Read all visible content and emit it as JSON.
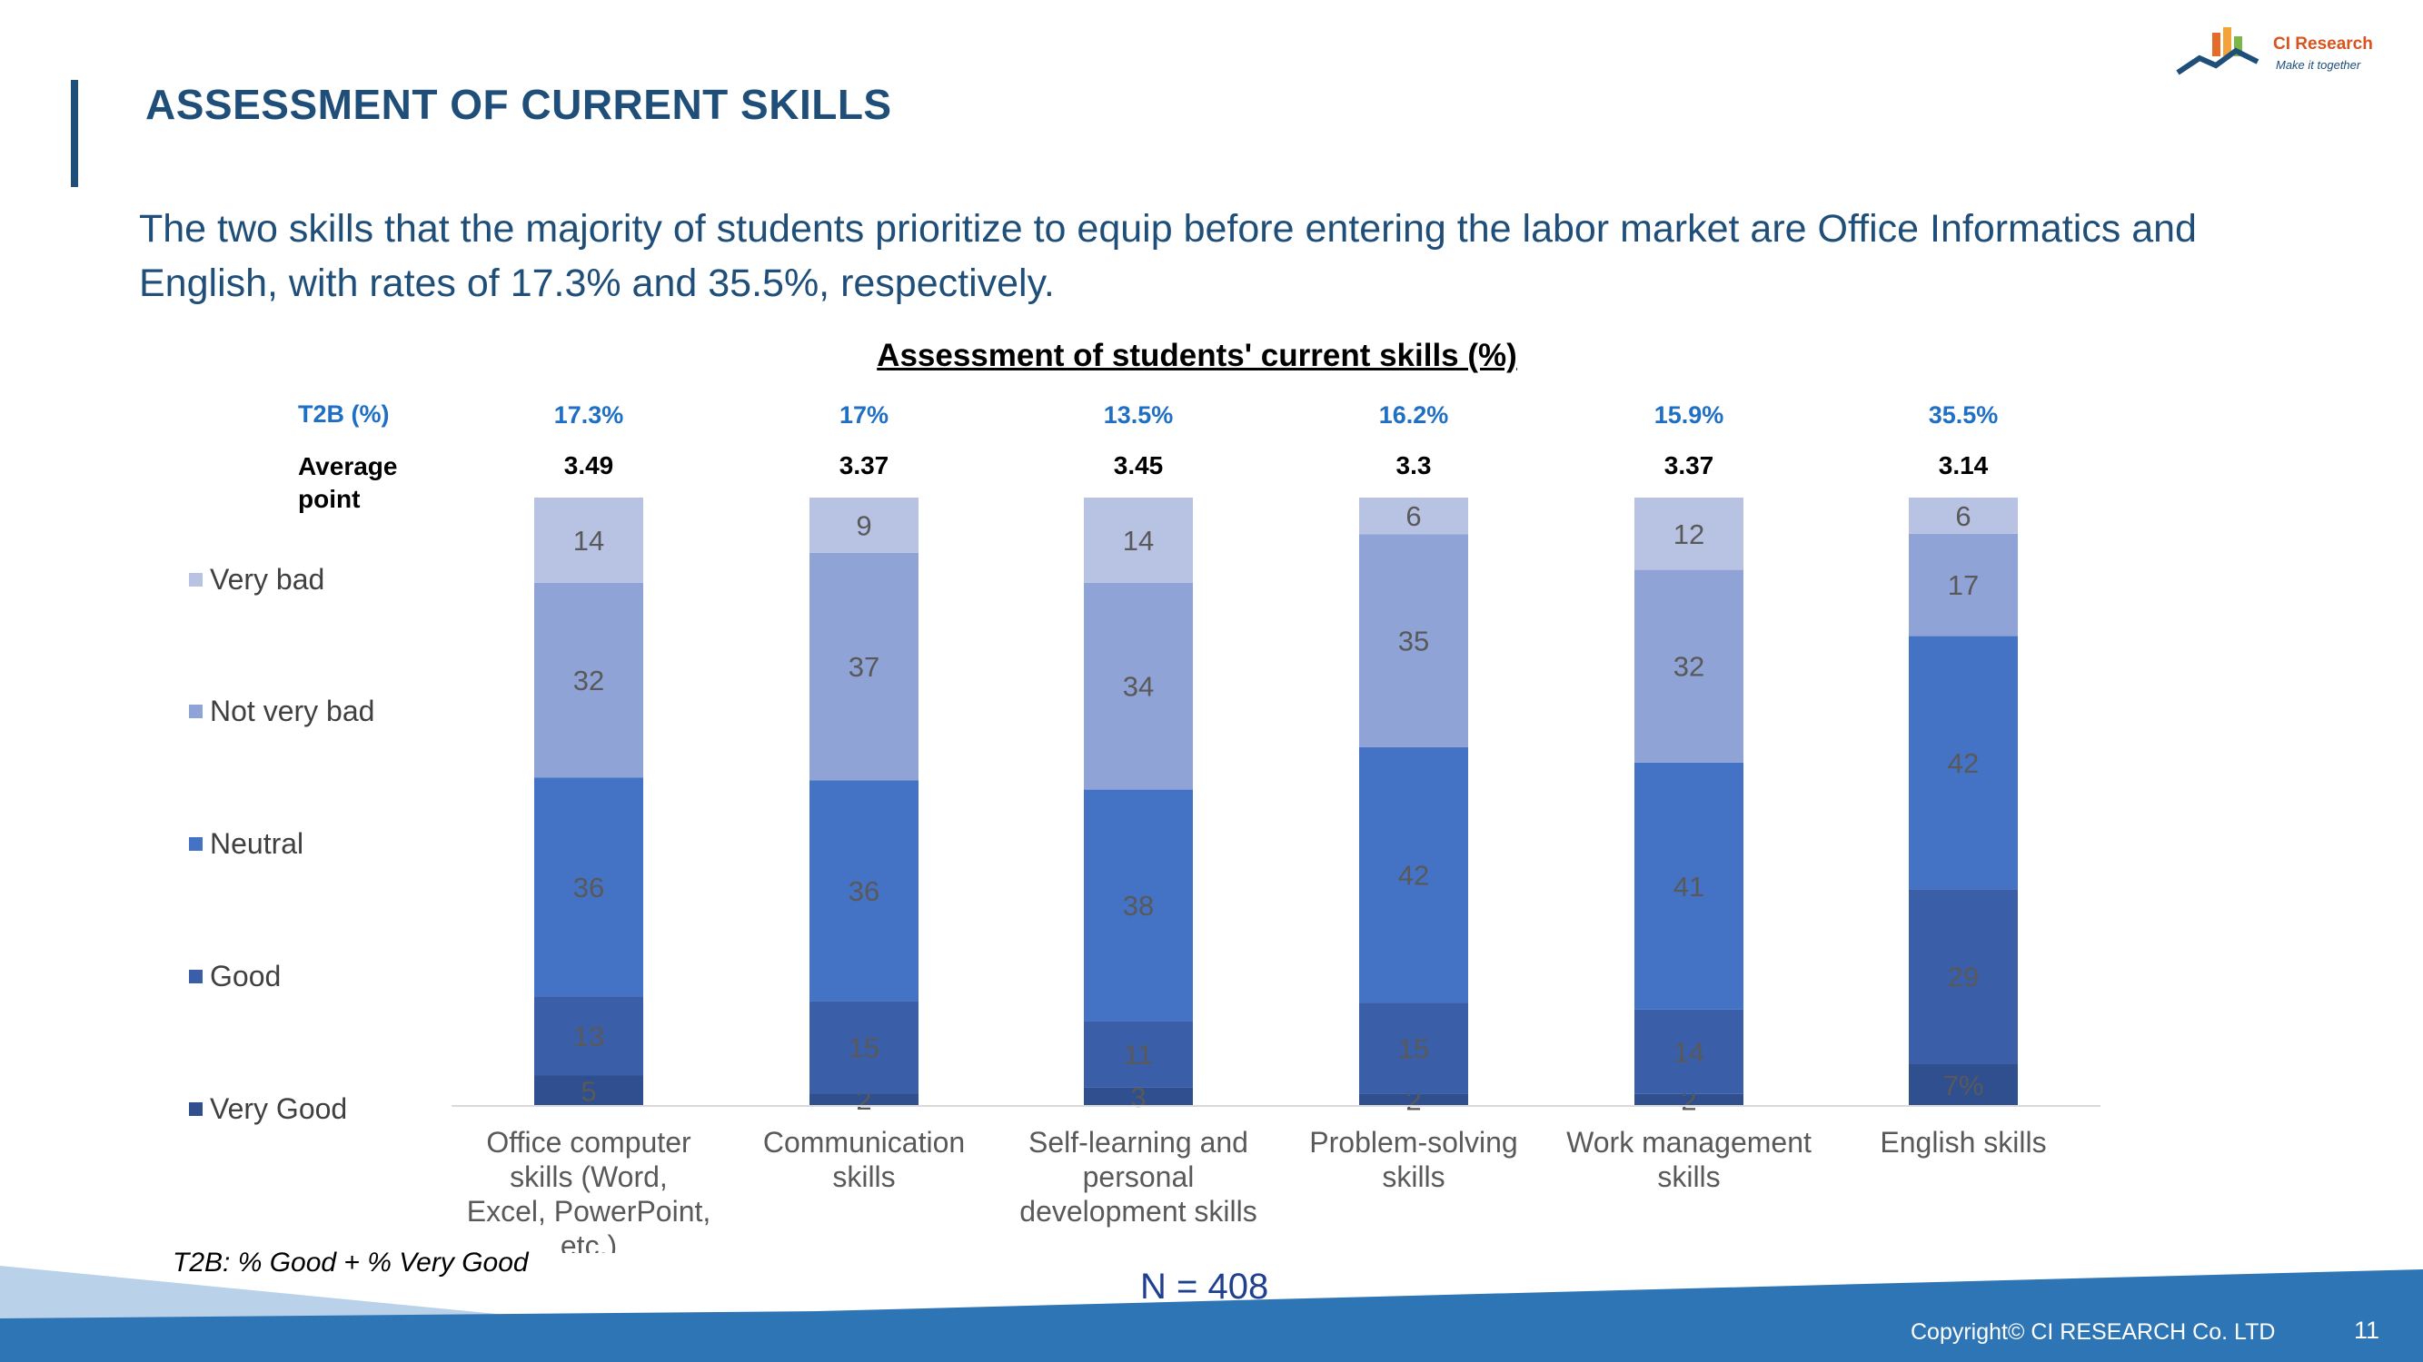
{
  "page": {
    "title": "ASSESSMENT OF CURRENT SKILLS",
    "headline": "The two skills that the majority of students prioritize to equip before entering the labor market are Office Informatics and English, with rates of 17.3% and 35.5%, respectively.",
    "logo_name": "CI Research",
    "logo_tagline": "Make it together",
    "footnote": "T2B: % Good + % Very Good",
    "sample_size": "N = 408",
    "copyright": "Copyright© CI RESEARCH Co. LTD",
    "page_number": "11"
  },
  "colors": {
    "title": "#1f4e79",
    "t2b_text": "#1f6fc4",
    "very_bad": "#b8c2e3",
    "not_very_bad": "#8fa3d6",
    "neutral": "#4472c4",
    "good": "#3a5ea8",
    "very_good": "#2f4f8f"
  },
  "chart_data": {
    "type": "bar",
    "stacked": true,
    "title": "Assessment of students' current skills (%)",
    "t2b_label": "T2B (%)",
    "average_label": "Average point",
    "categories": [
      "Office computer skills (Word, Excel, PowerPoint, etc.)",
      "Communication skills",
      "Self-learning and personal development skills",
      "Problem-solving skills",
      "Work management skills",
      "English skills"
    ],
    "t2b": [
      "17.3%",
      "17%",
      "13.5%",
      "16.2%",
      "15.9%",
      "35.5%"
    ],
    "average_point": [
      "3.49",
      "3.37",
      "3.45",
      "3.3",
      "3.37",
      "3.14"
    ],
    "series": [
      {
        "name": "Very Good",
        "values": [
          5,
          2,
          3,
          2,
          2,
          7
        ],
        "labels": [
          "5",
          "2",
          "3",
          "2",
          "2",
          "7%"
        ]
      },
      {
        "name": "Good",
        "values": [
          13,
          15,
          11,
          15,
          14,
          29
        ],
        "labels": [
          "13",
          "15",
          "11",
          "15",
          "14",
          "29"
        ]
      },
      {
        "name": "Neutral",
        "values": [
          36,
          36,
          38,
          42,
          41,
          42
        ],
        "labels": [
          "36",
          "36",
          "38",
          "42",
          "41",
          "42"
        ]
      },
      {
        "name": "Not very bad",
        "values": [
          32,
          37,
          34,
          35,
          32,
          17
        ],
        "labels": [
          "32",
          "37",
          "34",
          "35",
          "32",
          "17"
        ]
      },
      {
        "name": "Very bad",
        "values": [
          14,
          9,
          14,
          6,
          12,
          6
        ],
        "labels": [
          "14",
          "9",
          "14",
          "6",
          "12",
          "6"
        ]
      }
    ],
    "legend_order": [
      "Very bad",
      "Not very bad",
      "Neutral",
      "Good",
      "Very Good"
    ],
    "legend_position": "left",
    "ylim": [
      0,
      100
    ],
    "grid": false
  }
}
